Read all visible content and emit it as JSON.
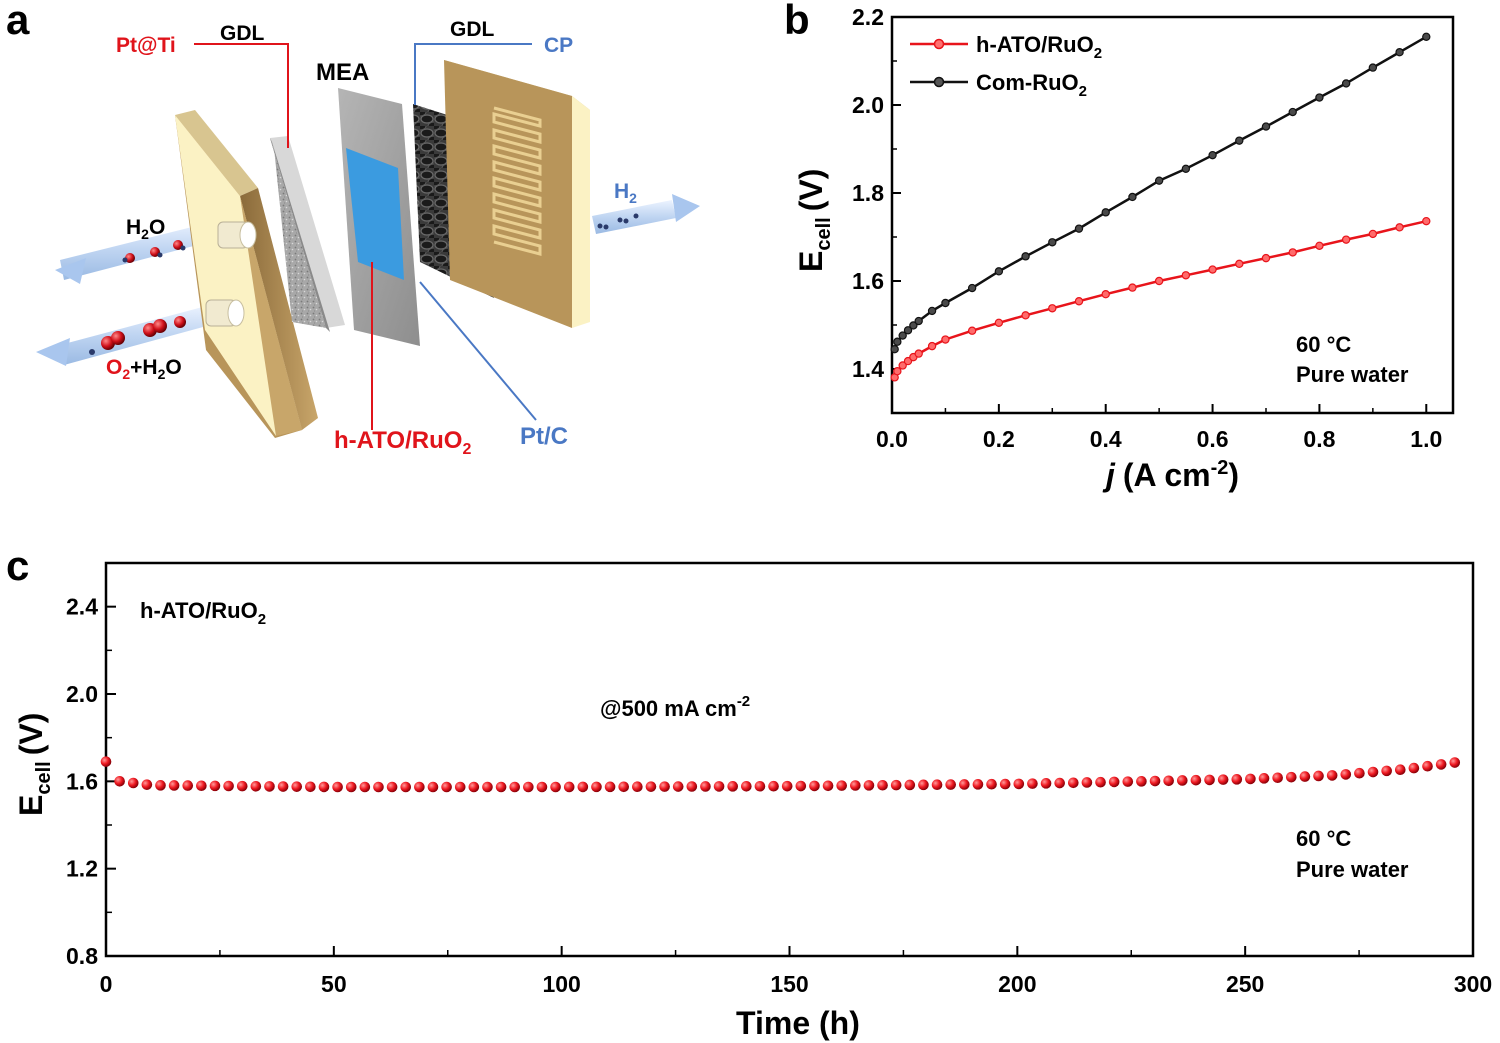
{
  "panels": {
    "a": "a",
    "b": "b",
    "c": "c"
  },
  "schematic": {
    "gdl_left": "GDL",
    "gdl_right": "GDL",
    "pt_ti": "Pt@Ti",
    "mea": "MEA",
    "cp": "CP",
    "h2": "H",
    "h2_sub": "2",
    "h2o_in": "H",
    "h2o_in_sub": "2",
    "h2o_in_o": "O",
    "o2_out": "O",
    "o2_out_sub": "2",
    "o2_out_rest": "+H",
    "o2_out_sub2": "2",
    "o2_out_o": "O",
    "anode_catalyst": "h-ATO/RuO",
    "anode_catalyst_sub": "2",
    "cathode_catalyst": "Pt/C",
    "colors": {
      "red": "#e0141b",
      "blue": "#4a78c4",
      "plate": "#b8955a",
      "plate_face": "#fbf2c4"
    }
  },
  "chart_data": [
    {
      "type": "line",
      "panel": "b",
      "xlabel_italic": "j",
      "xlabel": "(A cm",
      "xlabel_sup": "-2",
      "xlabel_end": ")",
      "ylabel": "E",
      "ylabel_sub": "cell",
      "ylabel_unit": "(V)",
      "xlim": [
        0,
        1.05
      ],
      "ylim": [
        1.3,
        2.2
      ],
      "xticks": [
        0.0,
        0.2,
        0.4,
        0.6,
        0.8,
        1.0
      ],
      "xtick_labels": [
        "0.0",
        "0.2",
        "0.4",
        "0.6",
        "0.8",
        "1.0"
      ],
      "yticks": [
        1.4,
        1.6,
        1.8,
        2.0,
        2.2
      ],
      "ytick_labels": [
        "1.4",
        "1.6",
        "1.8",
        "2.0",
        "2.2"
      ],
      "legend_position": "top-left",
      "annotation": [
        "60 °C",
        "Pure water"
      ],
      "series": [
        {
          "name": "h-ATO/RuO",
          "name_sub": "2",
          "color": "#e8141b",
          "x": [
            0.005,
            0.01,
            0.02,
            0.03,
            0.04,
            0.05,
            0.075,
            0.1,
            0.15,
            0.2,
            0.25,
            0.3,
            0.35,
            0.4,
            0.45,
            0.5,
            0.55,
            0.6,
            0.65,
            0.7,
            0.75,
            0.8,
            0.85,
            0.9,
            0.95,
            1.0
          ],
          "y": [
            1.381,
            1.395,
            1.408,
            1.418,
            1.427,
            1.435,
            1.452,
            1.467,
            1.487,
            1.505,
            1.522,
            1.538,
            1.554,
            1.57,
            1.585,
            1.6,
            1.613,
            1.626,
            1.639,
            1.652,
            1.665,
            1.68,
            1.694,
            1.707,
            1.722,
            1.736
          ]
        },
        {
          "name": "Com-RuO",
          "name_sub": "2",
          "color": "#111111",
          "x": [
            0.005,
            0.01,
            0.02,
            0.03,
            0.04,
            0.05,
            0.075,
            0.1,
            0.15,
            0.2,
            0.25,
            0.3,
            0.35,
            0.4,
            0.45,
            0.5,
            0.55,
            0.6,
            0.65,
            0.7,
            0.75,
            0.8,
            0.85,
            0.9,
            0.95,
            1.0
          ],
          "y": [
            1.445,
            1.462,
            1.476,
            1.488,
            1.499,
            1.509,
            1.532,
            1.55,
            1.584,
            1.622,
            1.656,
            1.688,
            1.719,
            1.756,
            1.791,
            1.828,
            1.855,
            1.886,
            1.919,
            1.951,
            1.984,
            2.017,
            2.049,
            2.085,
            2.12,
            2.155
          ]
        }
      ]
    },
    {
      "type": "scatter",
      "panel": "c",
      "title": "h-ATO/RuO",
      "title_sub": "2",
      "xlabel": "Time (h)",
      "ylabel": "E",
      "ylabel_sub": "cell",
      "ylabel_unit": "(V)",
      "xlim": [
        0,
        300
      ],
      "ylim": [
        0.8,
        2.6
      ],
      "xticks": [
        0,
        50,
        100,
        150,
        200,
        250,
        300
      ],
      "xtick_labels": [
        "0",
        "50",
        "100",
        "150",
        "200",
        "250",
        "300"
      ],
      "yticks": [
        0.8,
        1.2,
        1.6,
        2.0,
        2.4
      ],
      "ytick_labels": [
        "0.8",
        "1.2",
        "1.6",
        "2.0",
        "2.4"
      ],
      "condition": "@500 mA cm",
      "condition_sup": "-2",
      "annotation": [
        "60 °C",
        "Pure water"
      ],
      "series": [
        {
          "name": "h-ATO/RuO2",
          "color": "#e8141b",
          "x_start": 0,
          "x_end": 296,
          "n_points": 100,
          "profile": [
            [
              0,
              1.69
            ],
            [
              3,
              1.6
            ],
            [
              10,
              1.582
            ],
            [
              50,
              1.574
            ],
            [
              100,
              1.574
            ],
            [
              150,
              1.578
            ],
            [
              200,
              1.588
            ],
            [
              250,
              1.61
            ],
            [
              270,
              1.628
            ],
            [
              285,
              1.655
            ],
            [
              296,
              1.686
            ]
          ]
        }
      ]
    }
  ]
}
